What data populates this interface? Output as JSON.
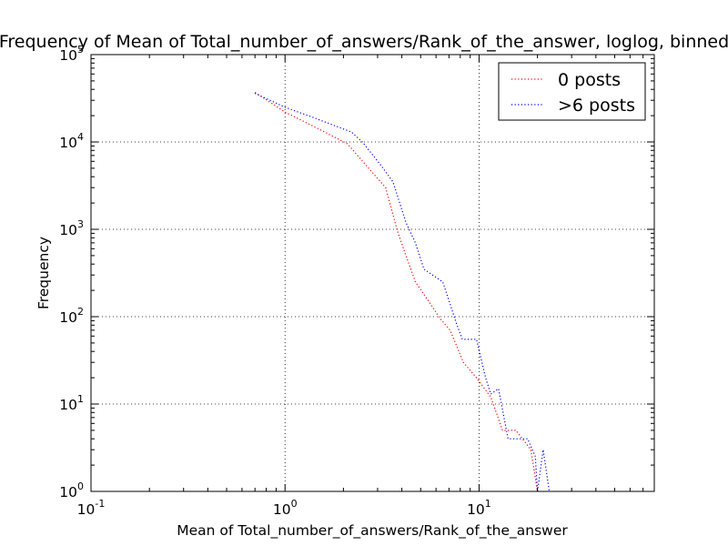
{
  "chart_data": {
    "type": "line",
    "title": "Frequency of Mean of Total_number_of_answers/Rank_of_the_answer, loglog, binned",
    "xlabel": "Mean of Total_number_of_answers/Rank_of_the_answer",
    "ylabel": "Frequency",
    "x_scale": "log",
    "y_scale": "log",
    "xlim": [
      0.1,
      80
    ],
    "ylim": [
      1,
      100000
    ],
    "x_ticks": [
      {
        "value": 0.1,
        "base": "10",
        "exp": "-1"
      },
      {
        "value": 1,
        "base": "10",
        "exp": "0"
      },
      {
        "value": 10,
        "base": "10",
        "exp": "1"
      }
    ],
    "y_ticks": [
      {
        "value": 1,
        "base": "10",
        "exp": "0"
      },
      {
        "value": 10,
        "base": "10",
        "exp": "1"
      },
      {
        "value": 100,
        "base": "10",
        "exp": "2"
      },
      {
        "value": 1000,
        "base": "10",
        "exp": "3"
      },
      {
        "value": 10000,
        "base": "10",
        "exp": "4"
      },
      {
        "value": 100000,
        "base": "10",
        "exp": "5"
      }
    ],
    "grid": true,
    "grid_style": "dotted",
    "legend_position": "top-right",
    "series": [
      {
        "name": "0 posts",
        "color": "#ff0000",
        "line_style": "dotted",
        "points": [
          [
            0.7,
            37000
          ],
          [
            1.0,
            22000
          ],
          [
            1.5,
            14000
          ],
          [
            2.1,
            9500
          ],
          [
            2.6,
            5500
          ],
          [
            3.3,
            3000
          ],
          [
            3.8,
            950
          ],
          [
            4.2,
            500
          ],
          [
            4.7,
            250
          ],
          [
            5.5,
            150
          ],
          [
            6.3,
            95
          ],
          [
            7.1,
            70
          ],
          [
            8.3,
            30
          ],
          [
            9.7,
            20
          ],
          [
            11.5,
            12
          ],
          [
            13.2,
            5
          ],
          [
            15.5,
            5
          ],
          [
            18.5,
            3
          ],
          [
            20.0,
            1
          ]
        ]
      },
      {
        "name": ">6 posts",
        "color": "#0000ff",
        "line_style": "dotted",
        "points": [
          [
            0.7,
            36000
          ],
          [
            1.0,
            25000
          ],
          [
            1.4,
            19000
          ],
          [
            2.2,
            13000
          ],
          [
            2.5,
            10000
          ],
          [
            3.1,
            5500
          ],
          [
            3.6,
            3500
          ],
          [
            4.2,
            1200
          ],
          [
            4.7,
            700
          ],
          [
            5.2,
            350
          ],
          [
            6.5,
            250
          ],
          [
            7.7,
            80
          ],
          [
            8.2,
            55
          ],
          [
            9.7,
            55
          ],
          [
            10.8,
            20
          ],
          [
            11.5,
            13
          ],
          [
            12.6,
            15
          ],
          [
            14.1,
            4
          ],
          [
            17.8,
            4
          ],
          [
            19.5,
            2.5
          ],
          [
            20.0,
            1
          ],
          [
            21.4,
            3
          ],
          [
            23.0,
            1
          ]
        ]
      }
    ]
  }
}
